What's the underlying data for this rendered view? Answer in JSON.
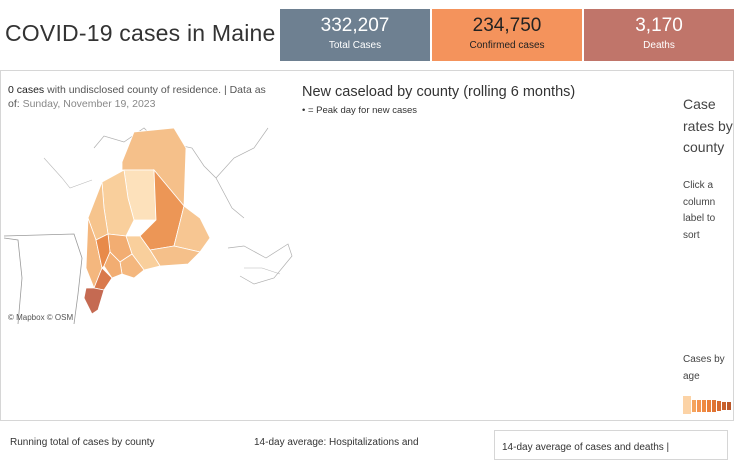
{
  "header": {
    "title": "COVID-19 cases in Maine"
  },
  "kpis": {
    "total": {
      "value": "332,207",
      "label": "Total Cases",
      "color": "#6e8091"
    },
    "confirmed": {
      "value": "234,750",
      "label": "Confirmed cases",
      "color": "#f4935c"
    },
    "deaths": {
      "value": "3,170",
      "label": "Deaths",
      "color": "#c0756a"
    }
  },
  "map_panel": {
    "undisclosed_count": "0 cases",
    "undisclosed_text": " with undisclosed county of residence. | Data as of: ",
    "as_of_date": "Sunday, November 19, 2023",
    "credit": "© Mapbox  © OSM"
  },
  "caseload_chart": {
    "title": "New caseload by county (rolling 6 months)",
    "subtitle": "• = Peak day for new cases"
  },
  "case_rates": {
    "title": "Case rates by county",
    "hint": "Click a column label to sort"
  },
  "cases_by_age": {
    "title": "Cases by age"
  },
  "bottom_tabs": {
    "running_total": "Running total of cases by county",
    "hospitalizations": "14-day average: Hospitalizations and",
    "cases_deaths": "14-day average of cases and deaths |"
  }
}
